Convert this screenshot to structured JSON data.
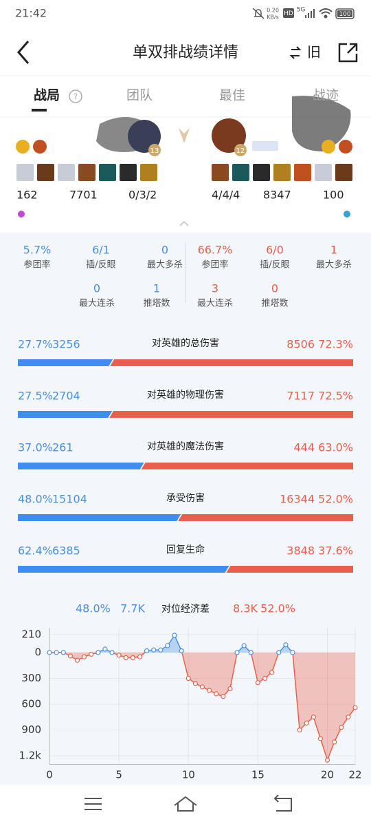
{
  "status_bar": {
    "time": "21:42",
    "net_speed": "0.20",
    "net_unit": "KB/s",
    "hd": "HD",
    "signal": "5G",
    "battery": "100"
  },
  "header": {
    "title": "单双排战绩详情",
    "switch_label": "旧"
  },
  "tabs": [
    "战局",
    "团队",
    "最佳",
    "战迹"
  ],
  "help": "?",
  "players": {
    "left": {
      "level": "13",
      "stats": [
        "162",
        "7701",
        "0/3/2"
      ]
    },
    "right": {
      "level": "12",
      "stats": [
        "4/4/4",
        "8347",
        "100"
      ]
    }
  },
  "stats": {
    "left": [
      {
        "value": "5.7%",
        "label": "参团率"
      },
      {
        "value": "6/1",
        "label": "插/反眼"
      },
      {
        "value": "0",
        "label": "最大多杀"
      },
      {
        "value": "0",
        "label": "最大连杀"
      },
      {
        "value": "1",
        "label": "推塔数"
      }
    ],
    "right": [
      {
        "value": "66.7%",
        "label": "参团率"
      },
      {
        "value": "6/0",
        "label": "插/反眼"
      },
      {
        "value": "1",
        "label": "最大多杀"
      },
      {
        "value": "3",
        "label": "最大连杀"
      },
      {
        "value": "0",
        "label": "推塔数"
      }
    ]
  },
  "comparisons": [
    {
      "label": "对英雄的总伤害",
      "left_percent": 27.7,
      "left_percent_label": "27.7%",
      "left_value": 3256,
      "right_value": 8506,
      "right_percent": 72.3,
      "right_percent_label": "72.3%"
    },
    {
      "label": "对英雄的物理伤害",
      "left_percent": 27.5,
      "left_percent_label": "27.5%",
      "left_value": 2704,
      "right_value": 7117,
      "right_percent": 72.5,
      "right_percent_label": "72.5%"
    },
    {
      "label": "对英雄的魔法伤害",
      "left_percent": 37,
      "left_percent_label": "37.0%",
      "left_value": 261,
      "right_value": 444,
      "right_percent": 63,
      "right_percent_label": "63.0%"
    },
    {
      "label": "承受伤害",
      "left_percent": 48,
      "left_percent_label": "48.0%",
      "left_value": 15104,
      "right_value": 16344,
      "right_percent": 52,
      "right_percent_label": "52.0%"
    },
    {
      "label": "回复生命",
      "left_percent": 62.4,
      "left_percent_label": "62.4%",
      "left_value": 6385,
      "right_value": 3848,
      "right_percent": 37.6,
      "right_percent_label": "37.6%"
    }
  ],
  "economy": {
    "left_percent": "48.0%",
    "left_gold": "7.7K",
    "label": "对位经济差",
    "right_gold": "8.3K",
    "right_percent": "52.0%"
  },
  "chart_data": {
    "type": "area",
    "x": [
      0,
      0.5,
      1,
      1.5,
      2,
      2.5,
      3,
      3.5,
      4,
      4.5,
      5,
      5.5,
      6,
      6.5,
      7,
      7.5,
      8,
      8.5,
      9,
      9.5,
      10,
      10.5,
      11,
      11.5,
      12,
      12.5,
      13,
      13.5,
      14,
      14.5,
      15,
      15.5,
      16,
      16.5,
      17,
      17.5,
      18,
      18.5,
      19,
      19.5,
      20,
      20.5,
      21,
      21.5,
      22
    ],
    "values": [
      0,
      0,
      0,
      -40,
      -90,
      -50,
      -20,
      0,
      40,
      0,
      -30,
      -60,
      -60,
      -50,
      20,
      30,
      30,
      80,
      200,
      20,
      -300,
      -360,
      -400,
      -440,
      -480,
      -510,
      -420,
      0,
      80,
      0,
      -350,
      -300,
      -230,
      0,
      90,
      0,
      -900,
      -820,
      -750,
      -1000,
      -1250,
      -1040,
      -870,
      -750,
      -640
    ],
    "xlim": [
      0,
      22
    ],
    "xticks": [
      0,
      5,
      10,
      15,
      20,
      22
    ],
    "ylim": [
      -1300,
      290
    ],
    "yticks": [
      210,
      0,
      {
        "value": -300,
        "label": "300"
      },
      {
        "value": -600,
        "label": "600"
      },
      {
        "value": -900,
        "label": "900"
      },
      {
        "value": -1200,
        "label": "1.2k"
      }
    ],
    "positive_color": "#4a90e2",
    "negative_color": "#e8604c",
    "grid": true
  }
}
